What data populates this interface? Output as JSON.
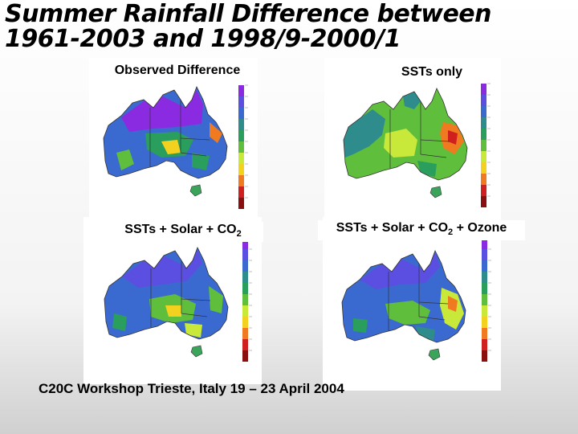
{
  "slide": {
    "title_line1": "Summer Rainfall Difference between",
    "title_line2": "1961-2003 and 1998/9-2000/1",
    "footer": "C20C Workshop Trieste, Italy 19 – 23 April 2004"
  },
  "panels": [
    {
      "label": "Observed Difference",
      "label_sub": "",
      "label_post": "",
      "scheme": "observed"
    },
    {
      "label": "SSTs only",
      "label_sub": "",
      "label_post": "",
      "scheme": "ssts"
    },
    {
      "label": "SSTs + Solar + CO",
      "label_sub": "2",
      "label_post": "",
      "scheme": "solarco2"
    },
    {
      "label": "SSTs + Solar + CO",
      "label_sub": "2",
      "label_post": " + Ozone",
      "scheme": "ozone"
    }
  ],
  "colorbar": [
    "#8a0f0f",
    "#d01f1f",
    "#f07a1f",
    "#f2d21e",
    "#c8e83a",
    "#5fbf3c",
    "#2a9e5c",
    "#2f8c8c",
    "#3a6ad0",
    "#5a4fe0",
    "#8a2be2"
  ],
  "ocean_color": "#ffffff",
  "tasmania_color": "#3aa55a"
}
